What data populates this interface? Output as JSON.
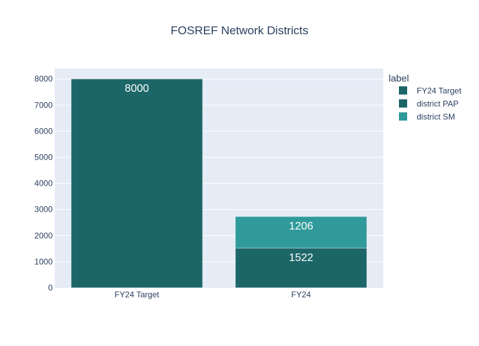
{
  "chart_data": {
    "type": "bar",
    "barmode": "stack",
    "title": "FOSREF Network Districts",
    "categories": [
      "FY24 Target",
      "FY24"
    ],
    "series": [
      {
        "name": "FY24 Target",
        "values": [
          8000,
          null
        ],
        "color": "#1d6668"
      },
      {
        "name": "district PAP",
        "values": [
          null,
          1522
        ],
        "color": "#1d6668"
      },
      {
        "name": "district SM",
        "values": [
          null,
          1206
        ],
        "color": "#2f9a99"
      }
    ],
    "ylim": [
      0,
      8400
    ],
    "yticks": [
      0,
      1000,
      2000,
      3000,
      4000,
      5000,
      6000,
      7000,
      8000
    ],
    "grid": true,
    "legend": {
      "title": "label",
      "position": "top-right"
    },
    "colors": {
      "plot_bg": "#e5ecf6",
      "grid": "#ffffff",
      "text": "#2a3f5f",
      "label": "#ffffff"
    }
  }
}
